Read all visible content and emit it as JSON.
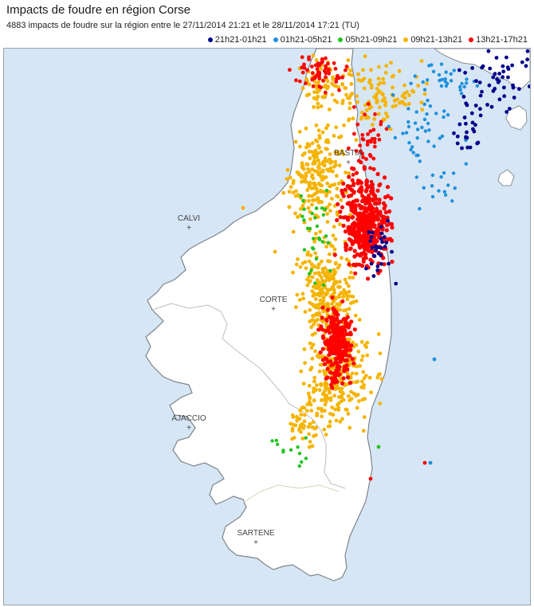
{
  "header": {
    "title": "Impacts de foudre en région Corse",
    "subtitle": "4883 impacts de foudre sur la région entre le 27/11/2014 21:21 et le 28/11/2014 17:21 (TU)"
  },
  "legend": [
    {
      "label": "21h21-01h21",
      "color": "#00008b"
    },
    {
      "label": "01h21-05h21",
      "color": "#1e90dc"
    },
    {
      "label": "05h21-09h21",
      "color": "#22c322"
    },
    {
      "label": "09h21-13h21",
      "color": "#f5b400"
    },
    {
      "label": "13h21-17h21",
      "color": "#ff0000"
    }
  ],
  "cities": [
    {
      "name": "BASTIA",
      "color": "#ffffff"
    },
    {
      "name": "CALVI",
      "color": "#444444"
    },
    {
      "name": "CORTE",
      "color": "#444444"
    },
    {
      "name": "AJACCIO",
      "color": "#444444"
    },
    {
      "name": "SARTENE",
      "color": "#444444"
    }
  ]
}
